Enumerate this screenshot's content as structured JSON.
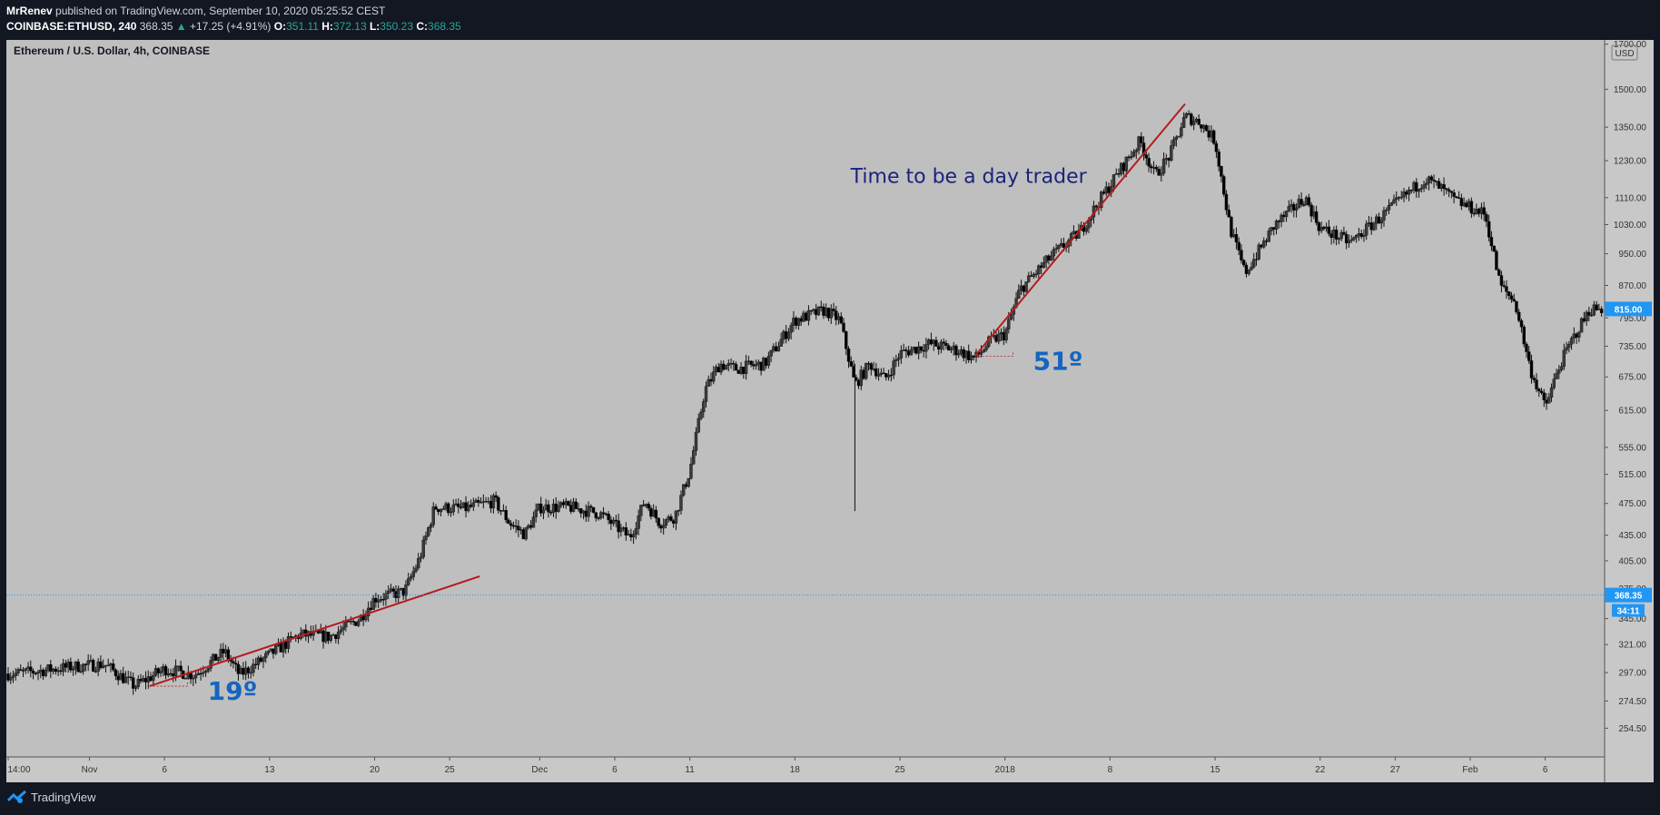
{
  "header": {
    "author": "MrRenev",
    "published": "published on TradingView.com, September 10, 2020 05:25:52 CEST",
    "symbol": "COINBASE:ETHUSD, 240",
    "last": "368.35",
    "change": "+17.25 (+4.91%)",
    "change_arrow": "▲",
    "o_label": "O:",
    "o": "351.11",
    "h_label": "H:",
    "h": "372.13",
    "l_label": "L:",
    "l": "350.23",
    "c_label": "C:",
    "c": "368.35"
  },
  "footer": {
    "brand": "TradingView"
  },
  "colors": {
    "background": "#bfbfbf",
    "candle_up": "#3a3a3a",
    "candle_down": "#000000",
    "trendline": "#b71c1c",
    "annotation_text": "#1a237e",
    "angle_text": "#1565c0",
    "price_tag": "#2196f3",
    "axis_bg": "#c8c8c8"
  },
  "chart_data": {
    "type": "candlestick",
    "title": "Ethereum / U.S. Dollar, 4h, COINBASE",
    "currency": "USD",
    "scale": "log",
    "ylim": [
      235,
      1720
    ],
    "y_ticks": [
      "1700.00",
      "1500.00",
      "1350.00",
      "1230.00",
      "1110.00",
      "1030.00",
      "950.00",
      "870.00",
      "795.00",
      "735.00",
      "675.00",
      "615.00",
      "555.00",
      "515.00",
      "475.00",
      "435.00",
      "405.00",
      "375.00",
      "345.00",
      "321.00",
      "297.00",
      "274.50",
      "254.50"
    ],
    "x_ticks": [
      "14:00",
      "Nov",
      "6",
      "13",
      "20",
      "25",
      "Dec",
      "6",
      "11",
      "18",
      "25",
      "2018",
      "8",
      "15",
      "22",
      "27",
      "Feb",
      "6"
    ],
    "price_path": [
      [
        "2017-10-27",
        296
      ],
      [
        "2017-10-31",
        302
      ],
      [
        "2017-11-02",
        304
      ],
      [
        "2017-11-04",
        286
      ],
      [
        "2017-11-06",
        300
      ],
      [
        "2017-11-08",
        295
      ],
      [
        "2017-11-10",
        315
      ],
      [
        "2017-11-11",
        295
      ],
      [
        "2017-11-13",
        312
      ],
      [
        "2017-11-15",
        330
      ],
      [
        "2017-11-17",
        328
      ],
      [
        "2017-11-19",
        345
      ],
      [
        "2017-11-20",
        365
      ],
      [
        "2017-11-22",
        372
      ],
      [
        "2017-11-23",
        408
      ],
      [
        "2017-11-24",
        470
      ],
      [
        "2017-11-26",
        468
      ],
      [
        "2017-11-28",
        478
      ],
      [
        "2017-11-29",
        450
      ],
      [
        "2017-11-30",
        436
      ],
      [
        "2017-12-01",
        470
      ],
      [
        "2017-12-03",
        470
      ],
      [
        "2017-12-05",
        462
      ],
      [
        "2017-12-07",
        432
      ],
      [
        "2017-12-08",
        478
      ],
      [
        "2017-12-09",
        450
      ],
      [
        "2017-12-10",
        458
      ],
      [
        "2017-12-11",
        520
      ],
      [
        "2017-12-12",
        650
      ],
      [
        "2017-12-13",
        700
      ],
      [
        "2017-12-14",
        690
      ],
      [
        "2017-12-16",
        700
      ],
      [
        "2017-12-18",
        790
      ],
      [
        "2017-12-20",
        812
      ],
      [
        "2017-12-21",
        790
      ],
      [
        "2017-12-22",
        660
      ],
      [
        "2017-12-23",
        700
      ],
      [
        "2017-12-24",
        670
      ],
      [
        "2017-12-25",
        720
      ],
      [
        "2017-12-27",
        740
      ],
      [
        "2017-12-29",
        725
      ],
      [
        "2017-12-30",
        710
      ],
      [
        "2017-12-31",
        745
      ],
      [
        "2018-01-01",
        760
      ],
      [
        "2018-01-02",
        860
      ],
      [
        "2018-01-04",
        940
      ],
      [
        "2018-01-06",
        1010
      ],
      [
        "2018-01-07",
        1080
      ],
      [
        "2018-01-08",
        1150
      ],
      [
        "2018-01-10",
        1300
      ],
      [
        "2018-01-11",
        1180
      ],
      [
        "2018-01-12",
        1250
      ],
      [
        "2018-01-13",
        1390
      ],
      [
        "2018-01-14",
        1370
      ],
      [
        "2018-01-15",
        1300
      ],
      [
        "2018-01-16",
        1020
      ],
      [
        "2018-01-17",
        900
      ],
      [
        "2018-01-19",
        1030
      ],
      [
        "2018-01-21",
        1110
      ],
      [
        "2018-01-22",
        1020
      ],
      [
        "2018-01-24",
        980
      ],
      [
        "2018-01-26",
        1050
      ],
      [
        "2018-01-28",
        1130
      ],
      [
        "2018-01-29",
        1170
      ],
      [
        "2018-01-30",
        1140
      ],
      [
        "2018-01-31",
        1100
      ],
      [
        "2018-02-02",
        1060
      ],
      [
        "2018-02-03",
        870
      ],
      [
        "2018-02-04",
        830
      ],
      [
        "2018-02-05",
        690
      ],
      [
        "2018-02-06",
        620
      ],
      [
        "2018-02-07",
        700
      ],
      [
        "2018-02-08",
        760
      ],
      [
        "2018-02-09",
        815
      ]
    ],
    "trendlines": [
      {
        "start": [
          "2017-11-05",
          286
        ],
        "end": [
          "2017-11-27",
          388
        ],
        "angle_label": "19º"
      },
      {
        "start": [
          "2017-12-30",
          715
        ],
        "end": [
          "2018-01-13",
          1440
        ],
        "angle_label": "51º"
      }
    ],
    "annotations": [
      {
        "text": "Time to be a day trader",
        "at": [
          "2018-01-01",
          1180
        ]
      }
    ],
    "current_price": "368.35",
    "countdown": "34:11",
    "marker_price": "815.00"
  }
}
